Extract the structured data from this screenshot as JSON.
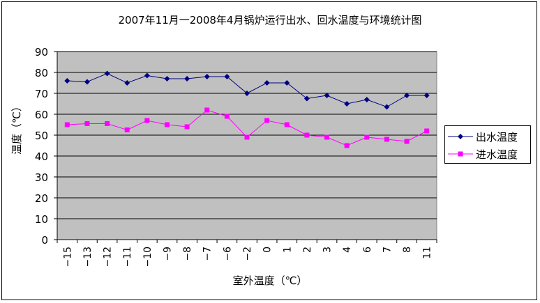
{
  "chart_data": {
    "type": "line",
    "title": "2007年11月一2008年4月锅炉运行出水、回水温度与环境统计图",
    "xlabel": "室外温度（℃）",
    "ylabel": "温度（℃）",
    "ylim": [
      0,
      90
    ],
    "yticks": [
      0,
      10,
      20,
      30,
      40,
      50,
      60,
      70,
      80,
      90
    ],
    "categories": [
      "-15",
      "-13",
      "-12",
      "-11",
      "-10",
      "-9",
      "-8",
      "-7",
      "-6",
      "-2",
      "0",
      "1",
      "2",
      "3",
      "4",
      "6",
      "7",
      "8",
      "11"
    ],
    "series": [
      {
        "name": "出水温度",
        "color": "#000080",
        "marker": "diamond",
        "values": [
          76,
          75.5,
          79.5,
          75,
          78.5,
          77,
          77,
          78,
          78,
          70,
          75,
          75,
          67.5,
          69,
          65,
          67,
          63.5,
          69,
          69
        ]
      },
      {
        "name": "进水温度",
        "color": "#ff00ff",
        "marker": "square",
        "values": [
          55,
          55.5,
          55.5,
          52.5,
          57,
          55,
          54,
          62,
          59,
          49,
          57,
          55,
          50,
          49,
          45,
          49,
          48,
          47,
          52
        ]
      }
    ],
    "grid": true,
    "plot_background": "#c0c0c0",
    "legend_position": "right"
  }
}
